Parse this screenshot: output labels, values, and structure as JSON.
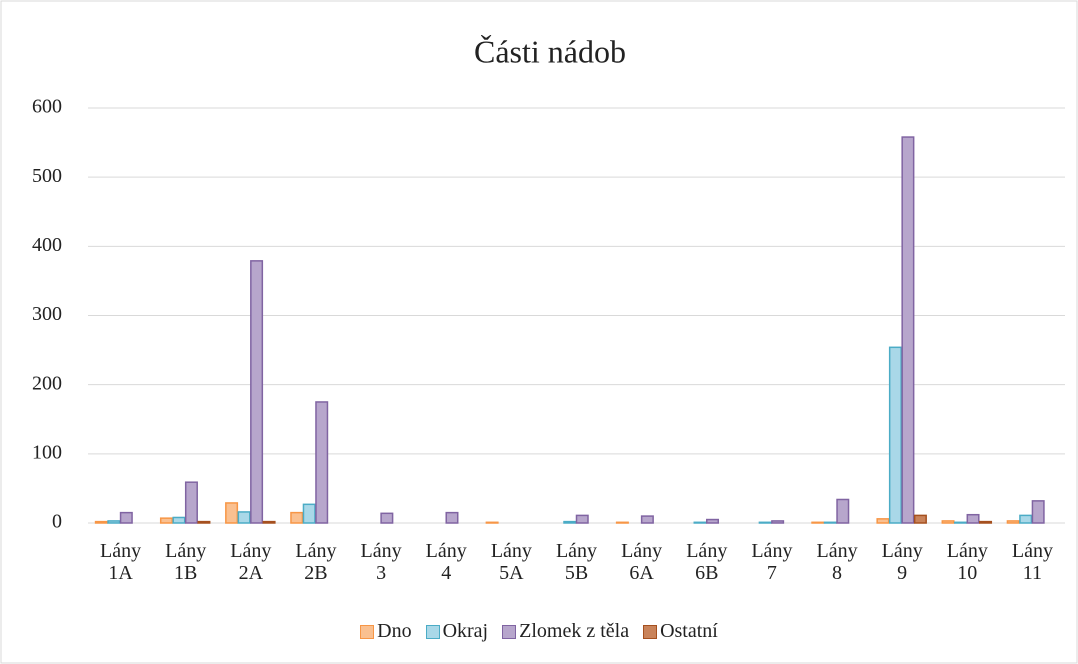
{
  "chart_data": {
    "type": "bar",
    "title": "Části nádob",
    "categories": [
      "Lány 1A",
      "Lány 1B",
      "Lány 2A",
      "Lány 2B",
      "Lány 3",
      "Lány 4",
      "Lány 5A",
      "Lány 5B",
      "Lány 6A",
      "Lány 6B",
      "Lány 7",
      "Lány 8",
      "Lány 9",
      "Lány 10",
      "Lány 11"
    ],
    "series": [
      {
        "name": "Dno",
        "color": "#fac090",
        "stroke": "#f79646",
        "values": [
          2,
          7,
          29,
          15,
          0,
          0,
          1,
          0,
          1,
          0,
          0,
          1,
          6,
          3,
          3
        ]
      },
      {
        "name": "Okraj",
        "color": "#a9d8e8",
        "stroke": "#4bacc6",
        "values": [
          3,
          8,
          16,
          27,
          0,
          0,
          0,
          2,
          0,
          1,
          1,
          1,
          254,
          1,
          11
        ]
      },
      {
        "name": "Zlomek z těla",
        "color": "#b7a6cc",
        "stroke": "#8064a2",
        "values": [
          15,
          59,
          379,
          175,
          14,
          15,
          0,
          11,
          10,
          5,
          3,
          34,
          558,
          12,
          32
        ]
      },
      {
        "name": "Ostatní",
        "color": "#c9835a",
        "stroke": "#a5501f",
        "values": [
          0,
          2,
          2,
          0,
          0,
          0,
          0,
          0,
          0,
          0,
          0,
          0,
          11,
          2,
          0
        ]
      }
    ],
    "ylim": [
      0,
      600
    ],
    "yticks": [
      0,
      100,
      200,
      300,
      400,
      500,
      600
    ],
    "grid": true,
    "legend": "bottom"
  }
}
